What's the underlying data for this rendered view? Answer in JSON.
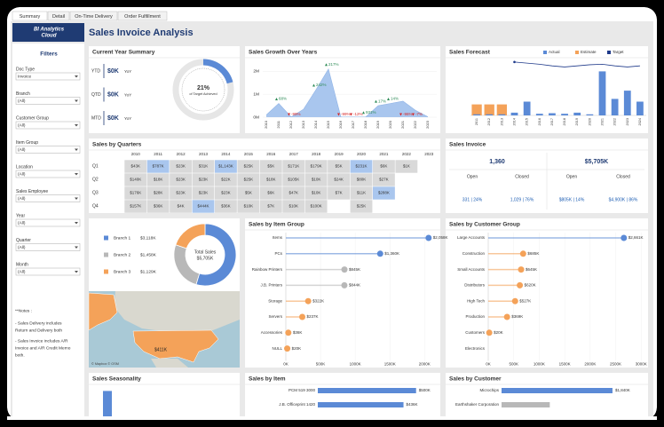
{
  "tabs": [
    "Summary",
    "Detail",
    "On-Time Delivery",
    "Order Fulfillment"
  ],
  "logo": {
    "line1": "BI Analytics",
    "line2": "Cloud"
  },
  "title": "Sales Invoice Analysis",
  "filters": {
    "heading": "Filters",
    "items": [
      {
        "label": "Doc Type",
        "value": "Invoice"
      },
      {
        "label": "Branch",
        "value": "(All)"
      },
      {
        "label": "Customer Group",
        "value": "(All)"
      },
      {
        "label": "Item Group",
        "value": "(All)"
      },
      {
        "label": "Location",
        "value": "(All)"
      },
      {
        "label": "Sales Employee",
        "value": "(All)"
      },
      {
        "label": "Year",
        "value": "(All)"
      },
      {
        "label": "Quarter",
        "value": "(All)"
      },
      {
        "label": "Month",
        "value": "(All)"
      }
    ]
  },
  "notes": [
    "**Notes :",
    "- Sales Delivery includes",
    "Return and Delivery both",
    "- Sales Invoice includes A/R",
    "Invoice and A/R Credit Memo",
    "both."
  ],
  "current_year": {
    "title": "Current Year Summary",
    "rows": [
      {
        "label": "YTD",
        "value": "$0K",
        "change": "YoY"
      },
      {
        "label": "QTD",
        "value": "$0K",
        "change": "YoY"
      },
      {
        "label": "MTD",
        "value": "$0K",
        "change": "YoY"
      }
    ],
    "gauge": {
      "value": 21,
      "label": "21%",
      "caption": "of Target Achieved",
      "color": "#5b8ad6"
    }
  },
  "growth": {
    "title": "Sales Growth Over Years",
    "type": "area",
    "categories": [
      "2010",
      "2011",
      "2012",
      "2013",
      "2014",
      "2015",
      "2016",
      "2017",
      "2018",
      "2019",
      "2020",
      "2021",
      "2022",
      "2023"
    ],
    "values": [
      0.1,
      0.6,
      0.01,
      0.35,
      1.2,
      2.1,
      0.01,
      0.01,
      0.01,
      0.5,
      0.6,
      0.7,
      0.3,
      0.02
    ],
    "growth_labels": [
      null,
      "68%",
      "-99%",
      null,
      "242%",
      "217%",
      "-99%",
      "-12%",
      "931%",
      "17%",
      "14%",
      "-96%",
      "-7%",
      null
    ],
    "ylim": [
      0,
      2.4
    ],
    "yticks": [
      {
        "value": 0,
        "label": "0M"
      },
      {
        "value": 1,
        "label": "1M"
      },
      {
        "value": 2,
        "label": "2M"
      }
    ],
    "color": "#a9c6ee"
  },
  "forecast": {
    "title": "Sales Forecast",
    "type": "bar",
    "categories": [
      "2011",
      "2012",
      "2013",
      "2014",
      "2015",
      "2016",
      "2017",
      "2018",
      "2019",
      "2020",
      "2021",
      "2022",
      "2023",
      "2024"
    ],
    "series": [
      {
        "name": "Actual",
        "color": "#5b8ad6",
        "values": [
          0.02,
          0.02,
          0.02,
          0.05,
          0.25,
          0.03,
          0.04,
          0.03,
          0.05,
          0.02,
          0.8,
          0.3,
          0.45,
          0.25
        ]
      },
      {
        "name": "Estimate",
        "color": "#f4a259",
        "values": [
          0.2,
          0.2,
          0.2,
          null,
          null,
          null,
          null,
          null,
          null,
          null,
          null,
          null,
          null,
          null
        ]
      },
      {
        "name": "Target",
        "color": "#1f3a8a",
        "type": "line",
        "values": [
          null,
          null,
          null,
          0.97,
          0.95,
          0.93,
          0.9,
          0.88,
          0.9,
          0.92,
          0.93,
          0.9,
          0.88,
          0.9
        ]
      }
    ],
    "ylim": [
      0,
      1
    ]
  },
  "quarters": {
    "title": "Sales by Quarters",
    "columns": [
      "2010",
      "2011",
      "2012",
      "2013",
      "2014",
      "2015",
      "2016",
      "2017",
      "2018",
      "2019",
      "2020",
      "2021",
      "2022",
      "2023"
    ],
    "rows": [
      {
        "label": "Q1",
        "cells": [
          "$43K",
          "$787K",
          "$23K",
          "$31K",
          "$1,143K",
          "$25K",
          "$5K",
          "$171K",
          "$179K",
          "$5K",
          "$231K",
          "$6K",
          "$1K",
          null
        ]
      },
      {
        "label": "Q2",
        "cells": [
          "$140K",
          "$18K",
          "$23K",
          "$23K",
          "$22K",
          "$25K",
          "$18K",
          "$105K",
          "$10K",
          "$24K",
          "$80K",
          "$27K",
          null,
          null
        ]
      },
      {
        "label": "Q3",
        "cells": [
          "$176K",
          "$28K",
          "$23K",
          "$23K",
          "$23K",
          "$5K",
          "$6K",
          "$47K",
          "$10K",
          "$7K",
          "$11K",
          "$288K",
          null,
          null
        ]
      },
      {
        "label": "Q4",
        "cells": [
          "$157K",
          "$36K",
          "$4K",
          "$444K",
          "$36K",
          "$10K",
          "$7K",
          "$10K",
          "$100K",
          null,
          "$25K",
          null,
          null,
          null
        ]
      }
    ],
    "highlighted": [
      [
        0,
        1
      ],
      [
        0,
        4
      ],
      [
        0,
        10
      ],
      [
        2,
        11
      ],
      [
        3,
        3
      ]
    ],
    "color": "#d9d9d9",
    "highlight_color": "#a9c6ee"
  },
  "invoice": {
    "title": "Sales Invoice",
    "count": "1,360",
    "amount": "$5,705K",
    "open": "Open",
    "closed": "Closed",
    "count_open": "331 | 24%",
    "count_closed": "1,029 | 76%",
    "amount_open": "$805K | 14%",
    "amount_closed": "$4,900K | 86%"
  },
  "branch": {
    "type": "pie",
    "categories": [
      "Branch 1",
      "Branch 2",
      "Branch 3"
    ],
    "values": [
      3118,
      1458,
      1129
    ],
    "value_labels": [
      "$3,118K",
      "$1,458K",
      "$1,129K"
    ],
    "colors": [
      "#5b8ad6",
      "#b8b8b8",
      "#f4a259"
    ],
    "center_title": "Total Sales",
    "center_value": "$5,705K"
  },
  "map": {
    "label": "$411K",
    "credit": "© Mapbox © OSM"
  },
  "item_group": {
    "title": "Sales by Item Group",
    "type": "lollipop",
    "categories": [
      "Items",
      "PCs",
      "Rainbow Printers",
      "J.B. Printers",
      "Storage",
      "Servers",
      "Accessories",
      "NULL"
    ],
    "values": [
      2058,
      1360,
      845,
      844,
      322,
      237,
      36,
      20
    ],
    "value_labels": [
      "$2,058K",
      "$1,360K",
      "$845K",
      "$844K",
      "$322K",
      "$237K",
      "$36K",
      "$20K"
    ],
    "colors": [
      "#5b8ad6",
      "#5b8ad6",
      "#b8b8b8",
      "#b8b8b8",
      "#f4a259",
      "#f4a259",
      "#f4a259",
      "#f4a259"
    ],
    "xlim": [
      0,
      2150
    ],
    "xticks": [
      {
        "value": 0,
        "label": "0K"
      },
      {
        "value": 500,
        "label": "500K"
      },
      {
        "value": 1000,
        "label": "1000K"
      },
      {
        "value": 1500,
        "label": "1500K"
      },
      {
        "value": 2000,
        "label": "2000K"
      }
    ]
  },
  "customer_group": {
    "title": "Sales by Customer Group",
    "type": "lollipop",
    "categories": [
      "Large Accounts",
      "Construction",
      "Small Accounts",
      "Distributors",
      "High Tech",
      "Production",
      "Customers",
      "Electronics"
    ],
    "values": [
      2661,
      685,
      645,
      620,
      527,
      369,
      20,
      0
    ],
    "value_labels": [
      "$2,661K",
      "$685K",
      "$645K",
      "$620K",
      "$527K",
      "$369K",
      "$20K",
      null
    ],
    "colors": [
      "#5b8ad6",
      "#f4a259",
      "#f4a259",
      "#f4a259",
      "#f4a259",
      "#f4a259",
      "#f4a259",
      "#f4a259"
    ],
    "xlim": [
      0,
      3100
    ],
    "xticks": [
      {
        "value": 0,
        "label": "0K"
      },
      {
        "value": 500,
        "label": "500K"
      },
      {
        "value": 1000,
        "label": "1000K"
      },
      {
        "value": 1500,
        "label": "1500K"
      },
      {
        "value": 2000,
        "label": "2000K"
      },
      {
        "value": 2500,
        "label": "2500K"
      },
      {
        "value": 3000,
        "label": "3000K"
      }
    ]
  },
  "seasonality": {
    "title": "Sales Seasonality",
    "type": "bar",
    "values": [
      0.9
    ],
    "ylim": [
      0,
      1
    ],
    "color": "#5b8ad6"
  },
  "items": {
    "title": "Sales by Item",
    "type": "hbar",
    "categories": [
      "PCM 519 3000",
      "J.B. Officeprint 1420"
    ],
    "values": [
      500,
      436
    ],
    "value_labels": [
      "$500K",
      "$436K"
    ],
    "xlim": [
      0,
      560
    ],
    "colors": [
      "#5b8ad6",
      "#5b8ad6"
    ]
  },
  "customers": {
    "title": "Sales by Customer",
    "type": "hbar",
    "categories": [
      "Microchips",
      "Earthshaker Corporation"
    ],
    "values": [
      1840,
      800
    ],
    "value_labels": [
      "$1,840K",
      null
    ],
    "xlim": [
      0,
      2400
    ],
    "colors": [
      "#5b8ad6",
      "#b8b8b8"
    ]
  }
}
